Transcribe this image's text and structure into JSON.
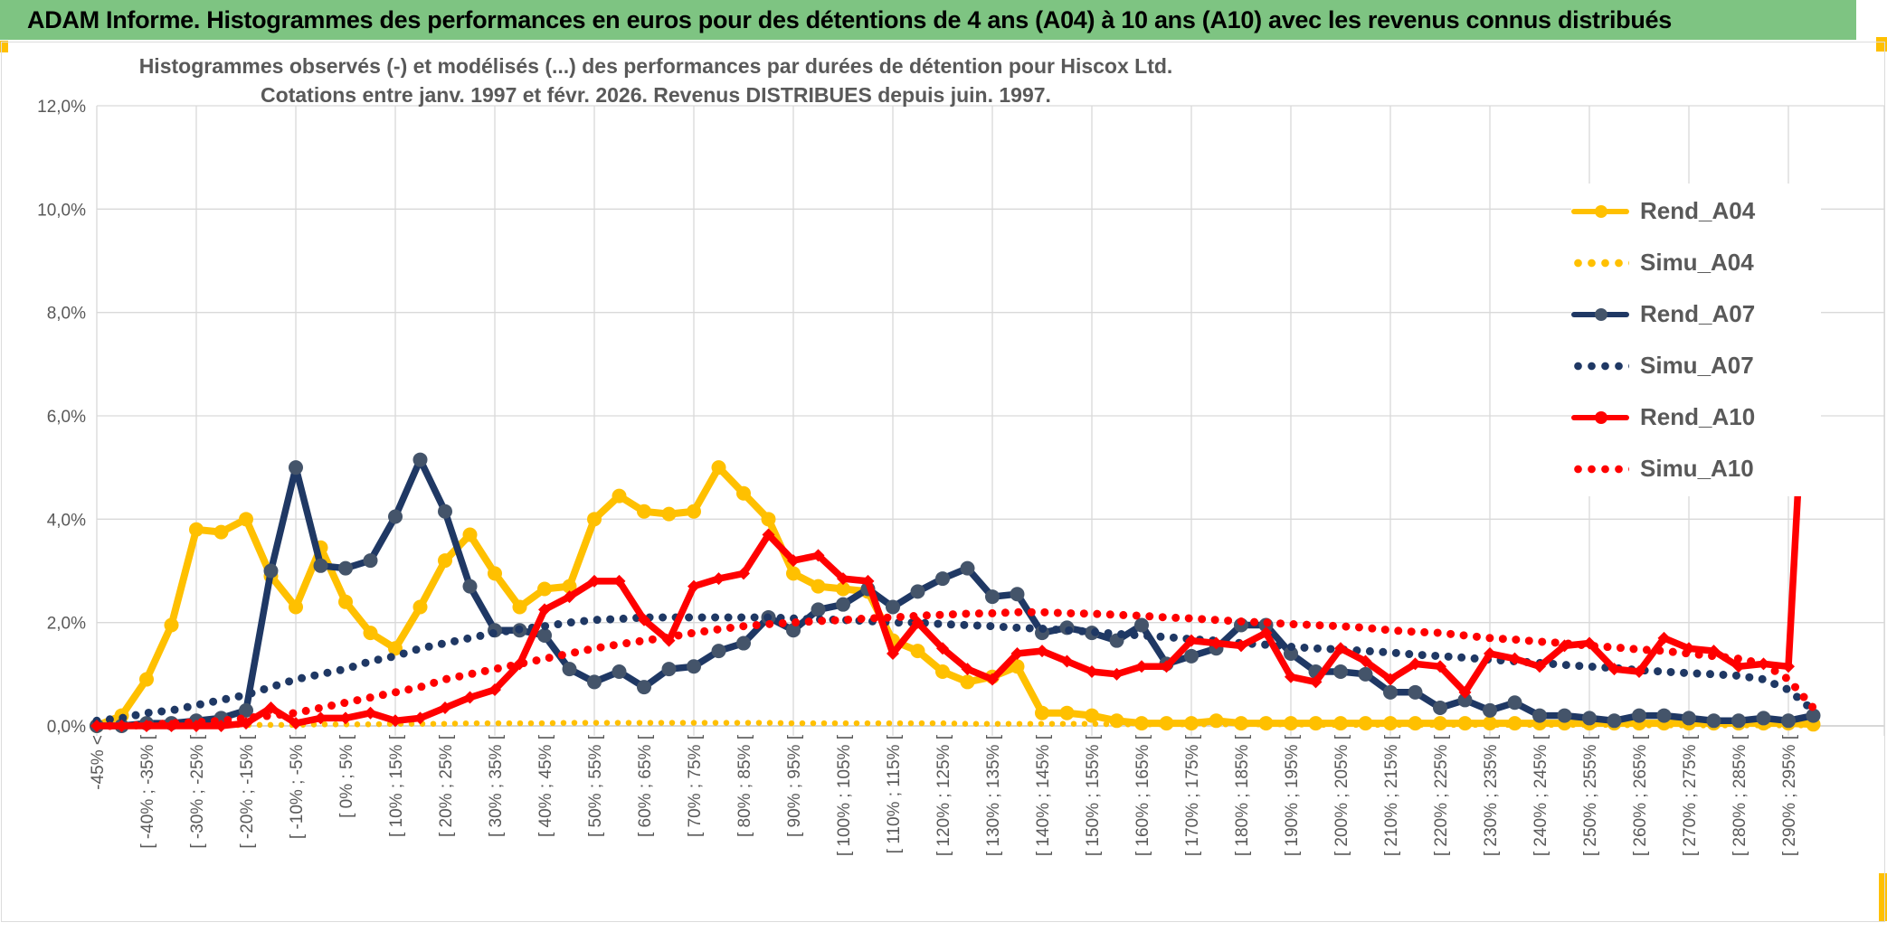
{
  "header": {
    "title": "ADAM Informe. Histogrammes des performances en euros pour des détentions de 4 ans (A04) à 10 ans (A10) avec les revenus connus distribués"
  },
  "chart_data": {
    "type": "line",
    "title": "Histogrammes observés (-) et modélisés (...) des performances par durées de détention pour Hiscox Ltd.",
    "subtitle": "Cotations entre janv. 1997 et févr. 2026. Revenus DISTRIBUES depuis juin. 1997.",
    "xlabel": "",
    "ylabel": "",
    "ylim": [
      0,
      12
    ],
    "ytick_step_pct": 2,
    "ytick_labels": [
      "0,0%",
      "2,0%",
      "4,0%",
      "6,0%",
      "8,0%",
      "10,0%",
      "12,0%"
    ],
    "grid": true,
    "legend_position": "right-inside",
    "x_bin_width_pct": 5,
    "categories": [
      "-45% <",
      "",
      "[ -40% ; -35% [",
      "",
      "[ -30% ; -25% [",
      "",
      "[ -20% ; -15% [",
      "",
      "[ -10% ; -5% [",
      "",
      "[ 0% ; 5% [",
      "",
      "[ 10% ; 15% [",
      "",
      "[ 20% ; 25% [",
      "",
      "[ 30% ; 35% [",
      "",
      "[ 40% ; 45% [",
      "",
      "[ 50% ; 55% [",
      "",
      "[ 60% ; 65% [",
      "",
      "[ 70% ; 75% [",
      "",
      "[ 80% ; 85% [",
      "",
      "[ 90% ; 95% [",
      "",
      "[ 100% ; 105% [",
      "",
      "[ 110% ; 115% [",
      "",
      "[ 120% ; 125% [",
      "",
      "[ 130% ; 135% [",
      "",
      "[ 140% ; 145% [",
      "",
      "[ 150% ; 155% [",
      "",
      "[ 160% ; 165% [",
      "",
      "[ 170% ; 175% [",
      "",
      "[ 180% ; 185% [",
      "",
      "[ 190% ; 195% [",
      "",
      "[ 200% ; 205% [",
      "",
      "[ 210% ; 215% [",
      "",
      "[ 220% ; 225% [",
      "",
      "[ 230% ; 235% [",
      "",
      "[ 240% ; 245% [",
      "",
      "[ 250% ; 255% [",
      "",
      "[ 260% ; 265% [",
      "",
      "[ 270% ; 275% [",
      "",
      "[ 280% ; 285% [",
      "",
      "[ 290% ; 295% [",
      ""
    ],
    "series": [
      {
        "name": "Rend_A04",
        "style": "solid",
        "color": "#FFC000",
        "marker": "circle",
        "marker_color": "#FFC000",
        "values": [
          0.0,
          0.2,
          0.9,
          1.95,
          3.8,
          3.75,
          4.0,
          2.9,
          2.3,
          3.45,
          2.4,
          1.8,
          1.5,
          2.3,
          3.2,
          3.7,
          2.95,
          2.3,
          2.65,
          2.7,
          4.0,
          4.45,
          4.15,
          4.1,
          4.15,
          5.0,
          4.5,
          4.0,
          2.95,
          2.7,
          2.65,
          2.6,
          1.65,
          1.45,
          1.05,
          0.85,
          0.95,
          1.15,
          0.25,
          0.25,
          0.2,
          0.1,
          0.05,
          0.05,
          0.05,
          0.1,
          0.05,
          0.05,
          0.05,
          0.05,
          0.05,
          0.05,
          0.05,
          0.05,
          0.05,
          0.05,
          0.05,
          0.05,
          0.05,
          0.05,
          0.05,
          0.05,
          0.05,
          0.05,
          0.05,
          0.05,
          0.05,
          0.05,
          0.05,
          0.03
        ]
      },
      {
        "name": "Simu_A04",
        "style": "dotted",
        "color": "#FFC000",
        "values": [
          0.0,
          0.0,
          0.0,
          0.01,
          0.01,
          0.01,
          0.02,
          0.02,
          0.02,
          0.03,
          0.03,
          0.03,
          0.04,
          0.04,
          0.04,
          0.05,
          0.05,
          0.05,
          0.05,
          0.06,
          0.06,
          0.06,
          0.06,
          0.06,
          0.06,
          0.06,
          0.06,
          0.06,
          0.05,
          0.05,
          0.05,
          0.05,
          0.05,
          0.05,
          0.05,
          0.04,
          0.04,
          0.04,
          0.04,
          0.04,
          0.04,
          0.03,
          0.03,
          0.03,
          0.03,
          0.03,
          0.03,
          0.03,
          0.03,
          0.02,
          0.02,
          0.02,
          0.02,
          0.02,
          0.02,
          0.02,
          0.02,
          0.02,
          0.02,
          0.02,
          0.02,
          0.02,
          0.01,
          0.01,
          0.01,
          0.01,
          0.01,
          0.01,
          0.01,
          0.01
        ]
      },
      {
        "name": "Rend_A07",
        "style": "solid",
        "color": "#1F3864",
        "marker": "circle",
        "marker_color": "#44546A",
        "values": [
          0.0,
          0.0,
          0.05,
          0.05,
          0.1,
          0.15,
          0.3,
          3.0,
          5.0,
          3.1,
          3.05,
          3.2,
          4.05,
          5.15,
          4.15,
          2.7,
          1.85,
          1.85,
          1.75,
          1.1,
          0.85,
          1.05,
          0.75,
          1.1,
          1.15,
          1.45,
          1.6,
          2.1,
          1.85,
          2.25,
          2.35,
          2.65,
          2.3,
          2.6,
          2.85,
          3.05,
          2.5,
          2.55,
          1.8,
          1.9,
          1.8,
          1.65,
          1.95,
          1.2,
          1.35,
          1.5,
          1.95,
          1.95,
          1.4,
          1.05,
          1.05,
          1.0,
          0.65,
          0.65,
          0.35,
          0.5,
          0.3,
          0.45,
          0.2,
          0.2,
          0.15,
          0.1,
          0.2,
          0.2,
          0.15,
          0.1,
          0.1,
          0.15,
          0.1,
          0.2
        ]
      },
      {
        "name": "Simu_A07",
        "style": "dotted",
        "color": "#1F3864",
        "values": [
          0.1,
          0.15,
          0.25,
          0.3,
          0.4,
          0.5,
          0.6,
          0.75,
          0.9,
          1.0,
          1.1,
          1.25,
          1.35,
          1.5,
          1.6,
          1.7,
          1.8,
          1.87,
          1.93,
          2.0,
          2.05,
          2.07,
          2.1,
          2.1,
          2.1,
          2.1,
          2.1,
          2.1,
          2.08,
          2.06,
          2.05,
          2.03,
          2.0,
          2.0,
          1.97,
          1.95,
          1.93,
          1.9,
          1.88,
          1.85,
          1.82,
          1.78,
          1.75,
          1.72,
          1.68,
          1.65,
          1.6,
          1.57,
          1.53,
          1.5,
          1.48,
          1.45,
          1.42,
          1.38,
          1.35,
          1.32,
          1.28,
          1.25,
          1.22,
          1.18,
          1.15,
          1.12,
          1.08,
          1.05,
          1.02,
          1.0,
          0.97,
          0.9,
          0.7,
          0.3
        ]
      },
      {
        "name": "Rend_A10",
        "style": "solid",
        "color": "#FF0000",
        "marker": "diamond",
        "marker_color": "#FF0000",
        "values": [
          0.0,
          0.0,
          0.0,
          0.0,
          0.0,
          0.0,
          0.05,
          0.35,
          0.05,
          0.15,
          0.15,
          0.25,
          0.1,
          0.15,
          0.35,
          0.55,
          0.7,
          1.2,
          2.25,
          2.5,
          2.8,
          2.8,
          2.05,
          1.65,
          2.7,
          2.85,
          2.95,
          3.7,
          3.2,
          3.3,
          2.85,
          2.8,
          1.4,
          2.0,
          1.5,
          1.1,
          0.9,
          1.4,
          1.45,
          1.25,
          1.05,
          1.0,
          1.15,
          1.15,
          1.65,
          1.6,
          1.55,
          1.8,
          0.95,
          0.85,
          1.5,
          1.25,
          0.9,
          1.2,
          1.15,
          0.65,
          1.4,
          1.3,
          1.15,
          1.55,
          1.6,
          1.1,
          1.05,
          1.7,
          1.5,
          1.45,
          1.15,
          1.2,
          1.15,
          10.0
        ]
      },
      {
        "name": "Simu_A10",
        "style": "dotted",
        "color": "#FF0000",
        "values": [
          0.0,
          0.0,
          0.02,
          0.05,
          0.07,
          0.1,
          0.15,
          0.2,
          0.25,
          0.35,
          0.45,
          0.55,
          0.65,
          0.75,
          0.9,
          1.0,
          1.1,
          1.2,
          1.3,
          1.4,
          1.5,
          1.58,
          1.65,
          1.72,
          1.8,
          1.87,
          1.93,
          1.97,
          2.0,
          2.03,
          2.05,
          2.08,
          2.1,
          2.13,
          2.15,
          2.17,
          2.18,
          2.2,
          2.2,
          2.18,
          2.17,
          2.15,
          2.13,
          2.1,
          2.08,
          2.05,
          2.02,
          2.0,
          1.97,
          1.95,
          1.93,
          1.9,
          1.85,
          1.82,
          1.8,
          1.75,
          1.7,
          1.67,
          1.63,
          1.6,
          1.55,
          1.52,
          1.48,
          1.45,
          1.4,
          1.35,
          1.3,
          1.2,
          0.9,
          0.35
        ]
      }
    ]
  },
  "colors": {
    "header_bg": "#7EC482",
    "accent_yellow": "#FFC000",
    "text_gray": "#595959",
    "gridline": "#D9D9D9",
    "axis_line": "#BFBFBF",
    "rend_a04": "#FFC000",
    "rend_a07": "#1F3864",
    "rend_a07_marker": "#44546A",
    "rend_a10": "#FF0000"
  }
}
